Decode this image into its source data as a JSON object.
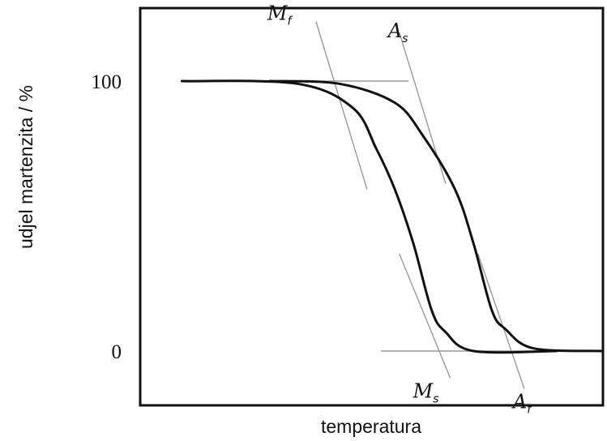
{
  "chart_data": {
    "type": "line",
    "xlabel": "temperatura",
    "ylabel": "udjel martenzita / %",
    "ylim": [
      0,
      100
    ],
    "yticks": [
      {
        "value": 100,
        "label": "100"
      },
      {
        "value": 0,
        "label": "0"
      }
    ],
    "x_tick_labels": false,
    "grid": false,
    "series": [
      {
        "curve": "cooling",
        "points": [
          [
            0.09,
            100
          ],
          [
            0.34,
            99
          ],
          [
            0.46,
            90
          ],
          [
            0.51,
            75
          ],
          [
            0.55,
            60
          ],
          [
            0.59,
            40
          ],
          [
            0.63,
            15
          ],
          [
            0.66,
            7
          ],
          [
            0.72,
            0
          ],
          [
            0.9,
            0
          ]
        ]
      },
      {
        "curve": "heating",
        "points": [
          [
            0.28,
            100
          ],
          [
            0.43,
            99
          ],
          [
            0.55,
            92
          ],
          [
            0.61,
            80
          ],
          [
            0.68,
            60
          ],
          [
            0.72,
            40
          ],
          [
            0.76,
            15
          ],
          [
            0.79,
            8
          ],
          [
            0.85,
            1
          ],
          [
            1.0,
            0
          ]
        ]
      }
    ],
    "reference_lines": [
      {
        "y": 100,
        "x": [
          0.09,
          0.58
        ]
      },
      {
        "y": 0,
        "x": [
          0.52,
          1.0
        ]
      }
    ],
    "annotations": [
      {
        "main": "M",
        "sub": "f",
        "tangent": [
          [
            0.38,
            122
          ],
          [
            0.49,
            60
          ]
        ]
      },
      {
        "main": "A",
        "sub": "s",
        "tangent": [
          [
            0.56,
            118
          ],
          [
            0.66,
            62
          ]
        ]
      },
      {
        "main": "M",
        "sub": "s",
        "tangent": [
          [
            0.56,
            36
          ],
          [
            0.67,
            -10
          ]
        ]
      },
      {
        "main": "A",
        "sub": "f",
        "tangent": [
          [
            0.73,
            36
          ],
          [
            0.83,
            -14
          ]
        ]
      }
    ]
  },
  "colors": {
    "line": "#111111",
    "reference": "#9a9a9a",
    "frame": "#111111"
  }
}
